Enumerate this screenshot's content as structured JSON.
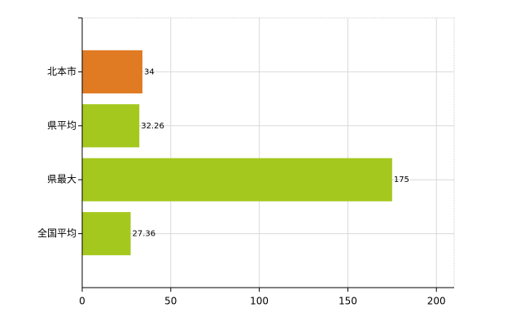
{
  "chart_data": {
    "type": "bar",
    "orientation": "horizontal",
    "categories": [
      "北本市",
      "県平均",
      "県最大",
      "全国平均"
    ],
    "values": [
      34,
      32.26,
      175,
      27.36
    ],
    "colors": [
      "#e07b24",
      "#a5c81e",
      "#a5c81e",
      "#a5c81e"
    ],
    "xlim": [
      0,
      210
    ],
    "xticks": [
      0,
      50,
      100,
      150,
      200
    ],
    "grid": true
  }
}
